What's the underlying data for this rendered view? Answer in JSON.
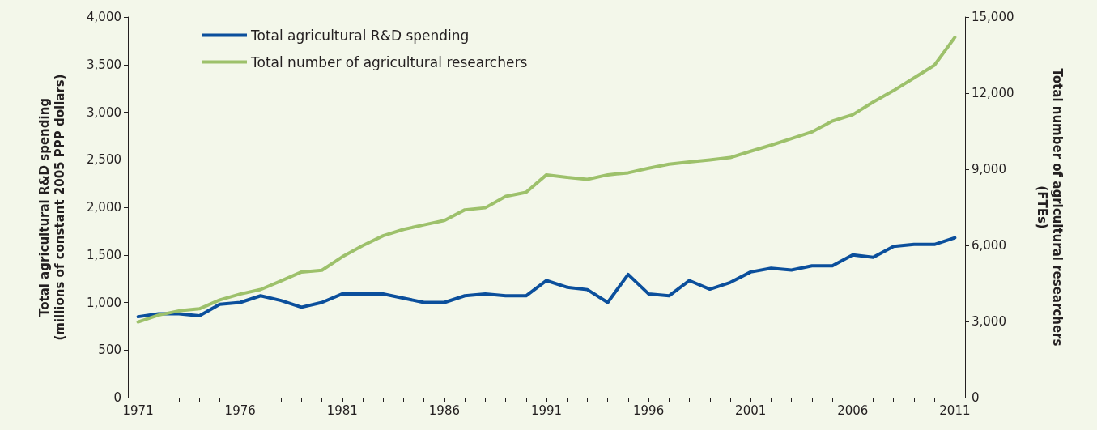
{
  "chart_data": {
    "type": "line",
    "ylabel": "Total agricultural R&D spending\n(millions of constant 2005 PPP dollars)",
    "y2label": "Total number of agricultural researchers\n(FTEs)",
    "x": [
      1971,
      1972,
      1973,
      1974,
      1975,
      1976,
      1977,
      1978,
      1979,
      1980,
      1981,
      1982,
      1983,
      1984,
      1985,
      1986,
      1987,
      1988,
      1989,
      1990,
      1991,
      1992,
      1993,
      1994,
      1995,
      1996,
      1997,
      1998,
      1999,
      2000,
      2001,
      2002,
      2003,
      2004,
      2005,
      2006,
      2007,
      2008,
      2009,
      2010,
      2011
    ],
    "series": [
      {
        "name": "Total agricultural R&D spending",
        "color": "#0b4f9c",
        "values": [
          850,
          880,
          880,
          860,
          980,
          1000,
          1070,
          1020,
          950,
          1000,
          1090,
          1090,
          1090,
          1045,
          1000,
          1000,
          1070,
          1090,
          1070,
          1070,
          1230,
          1160,
          1135,
          1000,
          1295,
          1090,
          1070,
          1230,
          1140,
          1210,
          1320,
          1360,
          1340,
          1385,
          1385,
          1500,
          1475,
          1590,
          1610,
          1610,
          1680
        ]
      },
      {
        "name": "Total number of agricultural researchers",
        "color": "#9dc16b",
        "axis": "y2",
        "values": [
          2980,
          3250,
          3420,
          3500,
          3850,
          4080,
          4260,
          4600,
          4950,
          5020,
          5550,
          5990,
          6380,
          6630,
          6810,
          6980,
          7400,
          7480,
          7930,
          8090,
          8780,
          8680,
          8600,
          8780,
          8860,
          9040,
          9200,
          9290,
          9370,
          9460,
          9710,
          9950,
          10210,
          10470,
          10900,
          11150,
          11650,
          12100,
          12600,
          13100,
          14200
        ]
      }
    ],
    "xlim": [
      1970.5,
      2011.5
    ],
    "xticks": [
      1971,
      {
        "value": 1972,
        "label": null
      },
      {
        "value": 1973,
        "label": null
      },
      {
        "value": 1974,
        "label": null
      },
      {
        "value": 1975,
        "label": null
      },
      1976,
      {
        "value": 1977,
        "label": null
      },
      {
        "value": 1978,
        "label": null
      },
      {
        "value": 1979,
        "label": null
      },
      {
        "value": 1980,
        "label": null
      },
      1981,
      {
        "value": 1982,
        "label": null
      },
      {
        "value": 1983,
        "label": null
      },
      {
        "value": 1984,
        "label": null
      },
      {
        "value": 1985,
        "label": null
      },
      1986,
      {
        "value": 1987,
        "label": null
      },
      {
        "value": 1988,
        "label": null
      },
      {
        "value": 1989,
        "label": null
      },
      {
        "value": 1990,
        "label": null
      },
      1991,
      {
        "value": 1992,
        "label": null
      },
      {
        "value": 1993,
        "label": null
      },
      {
        "value": 1994,
        "label": null
      },
      {
        "value": 1995,
        "label": null
      },
      1996,
      {
        "value": 1997,
        "label": null
      },
      {
        "value": 1998,
        "label": null
      },
      {
        "value": 1999,
        "label": null
      },
      {
        "value": 2000,
        "label": null
      },
      2001,
      {
        "value": 2002,
        "label": null
      },
      {
        "value": 2003,
        "label": null
      },
      {
        "value": 2004,
        "label": null
      },
      {
        "value": 2005,
        "label": null
      },
      2006,
      {
        "value": 2007,
        "label": null
      },
      {
        "value": 2008,
        "label": null
      },
      {
        "value": 2009,
        "label": null
      },
      {
        "value": 2010,
        "label": null
      },
      2011
    ],
    "ylim": [
      0,
      4000
    ],
    "yticks": [
      0,
      500,
      {
        "value": 1000,
        "label": "1,000"
      },
      {
        "value": 1500,
        "label": "1,500"
      },
      {
        "value": 2000,
        "label": "2,000"
      },
      {
        "value": 2500,
        "label": "2,500"
      },
      {
        "value": 3000,
        "label": "3,000"
      },
      {
        "value": 3500,
        "label": "3,500"
      },
      {
        "value": 4000,
        "label": "4,000"
      }
    ],
    "y2lim": [
      0,
      15000
    ],
    "y2ticks": [
      0,
      {
        "value": 3000,
        "label": "3,000"
      },
      {
        "value": 6000,
        "label": "6,000"
      },
      {
        "value": 9000,
        "label": "9,000"
      },
      {
        "value": 12000,
        "label": "12,000"
      },
      {
        "value": 15000,
        "label": "15,000"
      }
    ],
    "legend": "top left",
    "grid": false,
    "marker": "none",
    "line_style": "solid"
  }
}
